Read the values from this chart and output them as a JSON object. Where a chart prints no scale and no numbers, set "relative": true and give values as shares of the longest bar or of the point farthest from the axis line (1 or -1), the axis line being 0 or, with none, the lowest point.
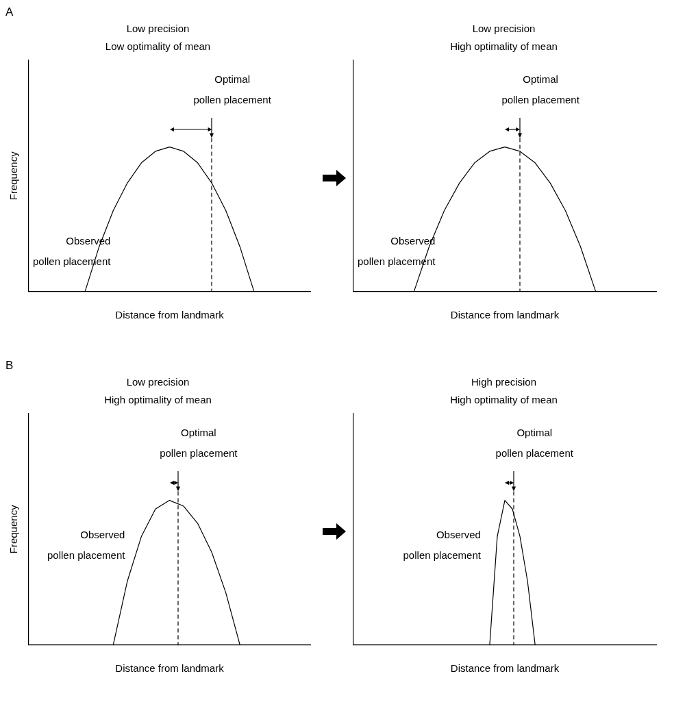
{
  "chart_data": [
    {
      "type": "line",
      "title": "Low precision",
      "subtitle": "Low optimality of mean",
      "xlabel": "Distance from landmark",
      "ylabel": "Frequency",
      "relative": true,
      "categories": [
        null,
        null,
        null,
        null,
        null,
        null,
        null,
        null,
        null,
        null,
        null,
        null,
        null,
        null,
        null,
        null,
        null,
        null,
        null,
        null,
        null
      ],
      "series": [
        {
          "name": "Observed pollen placement",
          "color": "#000000",
          "values": [
            null,
            null,
            null,
            null,
            0,
            0.31,
            0.56,
            0.75,
            0.89,
            0.97,
            1,
            0.97,
            0.89,
            0.75,
            0.56,
            0.31,
            0,
            null,
            null,
            null,
            null
          ]
        }
      ],
      "annotations": [
        "Optimal pollen placement",
        "A"
      ]
    },
    {
      "type": "line",
      "title": "Low precision",
      "subtitle": "High optimality of mean",
      "xlabel": "Distance from landmark",
      "relative": true,
      "categories": [
        null,
        null,
        null,
        null,
        null,
        null,
        null,
        null,
        null,
        null,
        null,
        null,
        null,
        null,
        null,
        null,
        null,
        null,
        null,
        null,
        null
      ],
      "series": [
        {
          "name": "Observed pollen placement",
          "color": "#000000",
          "values": [
            null,
            null,
            null,
            null,
            0,
            0.31,
            0.56,
            0.75,
            0.89,
            0.97,
            1,
            0.97,
            0.89,
            0.75,
            0.56,
            0.31,
            0,
            null,
            null,
            null,
            null
          ]
        }
      ],
      "annotations": [
        "Optimal pollen placement"
      ]
    },
    {
      "type": "line",
      "title": "Low precision",
      "subtitle": "High optimality of mean",
      "xlabel": "Distance from landmark",
      "ylabel": "Frequency",
      "relative": true,
      "categories": [
        null,
        null,
        null,
        null,
        null,
        null,
        null,
        null,
        null,
        null,
        null,
        null,
        null,
        null,
        null,
        null,
        null,
        null,
        null,
        null,
        null
      ],
      "series": [
        {
          "name": "Observed pollen placement",
          "color": "#000000",
          "values": [
            null,
            null,
            null,
            null,
            null,
            null,
            0,
            0.44,
            0.75,
            0.94,
            1,
            0.96,
            0.84,
            0.64,
            0.36,
            0,
            null,
            null,
            null,
            null,
            null
          ]
        }
      ],
      "annotations": [
        "Optimal pollen placement",
        "B"
      ]
    },
    {
      "type": "line",
      "title": "High precision",
      "subtitle": "High optimality of mean",
      "xlabel": "Distance from landmark",
      "relative": true,
      "categories": [
        null,
        null,
        null,
        null,
        null,
        null,
        null,
        null,
        null,
        null,
        null,
        null,
        null,
        null,
        null,
        null,
        null,
        null,
        null,
        null,
        null,
        null,
        null,
        null,
        null,
        null,
        null,
        null,
        null,
        null,
        null,
        null,
        null,
        null,
        null,
        null,
        null,
        null,
        null,
        null,
        null
      ],
      "series": [
        {
          "name": "Observed pollen placement",
          "color": "#000000",
          "values": [
            null,
            null,
            null,
            null,
            null,
            null,
            null,
            null,
            null,
            null,
            null,
            null,
            null,
            null,
            null,
            null,
            null,
            null,
            0,
            0.75,
            1,
            0.94,
            0.75,
            0.44,
            0,
            null,
            null,
            null,
            null,
            null,
            null,
            null,
            null,
            null,
            null,
            null,
            null,
            null,
            null,
            null,
            null
          ]
        }
      ],
      "annotations": [
        "Optimal pollen placement"
      ]
    }
  ]
}
